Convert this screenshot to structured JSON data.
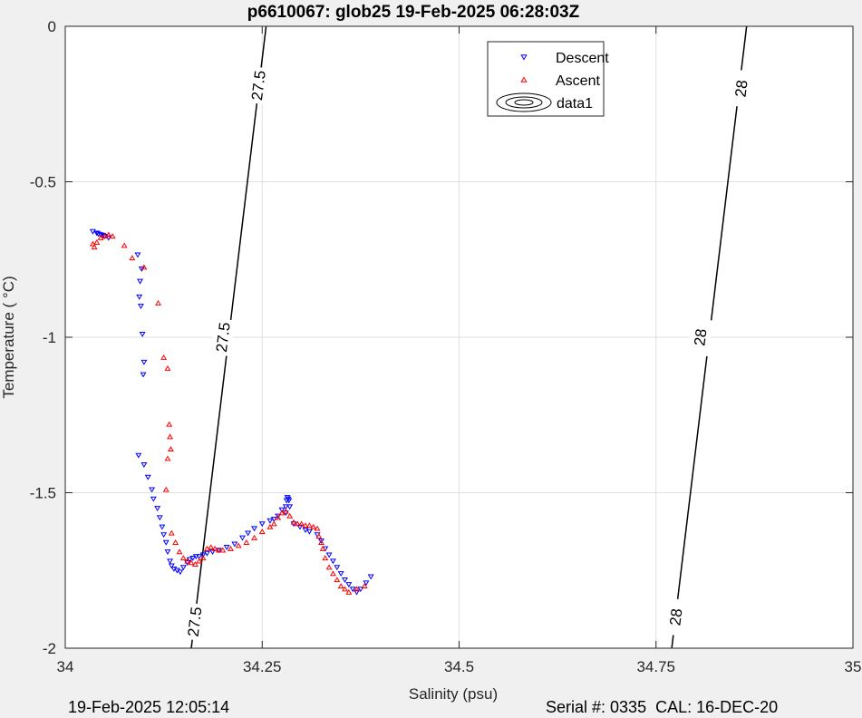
{
  "footer": {
    "left": "19-Feb-2025 12:05:14",
    "right": "Serial #: 0335  CAL: 16-DEC-20"
  },
  "colors": {
    "descent": "#0000ff",
    "ascent": "#ff0000",
    "contour": "#000000",
    "grid": "#dfdfdf",
    "figure_bg": "#f0f0f0",
    "axes_bg": "#ffffff"
  },
  "chart_data": {
    "type": "scatter",
    "title": "p6610067: glob25 19-Feb-2025 06:28:03Z",
    "xlabel": "Salinity (psu)",
    "ylabel": "Temperature (   °C)",
    "xlim": [
      34,
      35
    ],
    "ylim": [
      -2,
      0
    ],
    "xticks": [
      34,
      34.25,
      34.5,
      34.75,
      35
    ],
    "xtick_labels": [
      "34",
      "34.25",
      "34.5",
      "34.75",
      "35"
    ],
    "yticks": [
      0,
      -0.5,
      -1,
      -1.5,
      -2
    ],
    "ytick_labels": [
      "0",
      "-0.5",
      "-1",
      "-1.5",
      "-2"
    ],
    "grid": true,
    "legend": {
      "position": "top-right",
      "entries": [
        {
          "label": "Descent",
          "marker": "triangle-down"
        },
        {
          "label": "Ascent",
          "marker": "triangle-up"
        },
        {
          "label": "data1",
          "marker": "contour"
        }
      ]
    },
    "contours": [
      {
        "level": "27.5",
        "points": [
          [
            34.16,
            -2.0
          ],
          [
            34.255,
            0.0
          ]
        ],
        "labels": [
          {
            "text": "27.5",
            "x": 34.164,
            "y": -1.915
          },
          {
            "text": "27.5",
            "x": 34.2,
            "y": -1.0
          },
          {
            "text": "27.5",
            "x": 34.245,
            "y": -0.19
          }
        ]
      },
      {
        "level": "28",
        "points": [
          [
            34.77,
            -2.0
          ],
          [
            34.865,
            0.0
          ]
        ],
        "labels": [
          {
            "text": "28",
            "x": 34.775,
            "y": -1.9
          },
          {
            "text": "28",
            "x": 34.806,
            "y": -1.0
          },
          {
            "text": "28",
            "x": 34.858,
            "y": -0.2
          }
        ]
      }
    ],
    "series": [
      {
        "name": "Descent",
        "marker": "triangle-down",
        "x": [
          34.035,
          34.04,
          34.045,
          34.05,
          34.055,
          34.042,
          34.048,
          34.092,
          34.097,
          34.095,
          34.094,
          34.096,
          34.098,
          34.1,
          34.099,
          34.093,
          34.1,
          34.105,
          34.11,
          34.112,
          34.117,
          34.12,
          34.123,
          34.125,
          34.128,
          34.13,
          34.133,
          34.135,
          34.138,
          34.142,
          34.146,
          34.15,
          34.155,
          34.158,
          34.162,
          34.166,
          34.17,
          34.175,
          34.18,
          34.187,
          34.195,
          34.205,
          34.215,
          34.225,
          34.232,
          34.24,
          34.25,
          34.26,
          34.265,
          34.27,
          34.275,
          34.28,
          34.281,
          34.282,
          34.283,
          34.284,
          34.285,
          34.28,
          34.29,
          34.298,
          34.305,
          34.31,
          34.32,
          34.325,
          34.33,
          34.335,
          34.34,
          34.345,
          34.35,
          34.355,
          34.36,
          34.365,
          34.37,
          34.375,
          34.382,
          34.388
        ],
        "y": [
          -0.66,
          -0.665,
          -0.67,
          -0.675,
          -0.68,
          -0.668,
          -0.672,
          -0.735,
          -0.78,
          -0.82,
          -0.87,
          -0.9,
          -0.99,
          -1.08,
          -1.12,
          -1.38,
          -1.41,
          -1.45,
          -1.49,
          -1.52,
          -1.55,
          -1.58,
          -1.61,
          -1.635,
          -1.66,
          -1.69,
          -1.72,
          -1.735,
          -1.745,
          -1.75,
          -1.755,
          -1.74,
          -1.725,
          -1.715,
          -1.71,
          -1.705,
          -1.705,
          -1.7,
          -1.695,
          -1.69,
          -1.685,
          -1.675,
          -1.665,
          -1.645,
          -1.63,
          -1.615,
          -1.6,
          -1.59,
          -1.585,
          -1.575,
          -1.555,
          -1.545,
          -1.525,
          -1.515,
          -1.52,
          -1.525,
          -1.545,
          -1.565,
          -1.6,
          -1.61,
          -1.62,
          -1.625,
          -1.635,
          -1.655,
          -1.68,
          -1.7,
          -1.72,
          -1.74,
          -1.76,
          -1.78,
          -1.795,
          -1.81,
          -1.82,
          -1.81,
          -1.79,
          -1.77
        ]
      },
      {
        "name": "Ascent",
        "marker": "triangle-up",
        "x": [
          34.035,
          34.037,
          34.04,
          34.045,
          34.05,
          34.055,
          34.06,
          34.075,
          34.085,
          34.1,
          34.118,
          34.125,
          34.13,
          34.132,
          34.133,
          34.134,
          34.13,
          34.128,
          34.135,
          34.14,
          34.145,
          34.15,
          34.155,
          34.16,
          34.165,
          34.17,
          34.175,
          34.18,
          34.185,
          34.19,
          34.195,
          34.2,
          34.21,
          34.22,
          34.23,
          34.24,
          34.25,
          34.26,
          34.265,
          34.27,
          34.275,
          34.28,
          34.285,
          34.29,
          34.295,
          34.3,
          34.305,
          34.31,
          34.315,
          34.32,
          34.322,
          34.325,
          34.327,
          34.33,
          34.335,
          34.34,
          34.345,
          34.35,
          34.355,
          34.36,
          34.37,
          34.38
        ],
        "y": [
          -0.7,
          -0.71,
          -0.695,
          -0.68,
          -0.675,
          -0.67,
          -0.675,
          -0.705,
          -0.745,
          -0.775,
          -0.89,
          -1.065,
          -1.1,
          -1.28,
          -1.32,
          -1.36,
          -1.39,
          -1.49,
          -1.63,
          -1.66,
          -1.69,
          -1.71,
          -1.72,
          -1.725,
          -1.73,
          -1.72,
          -1.71,
          -1.68,
          -1.675,
          -1.68,
          -1.685,
          -1.685,
          -1.68,
          -1.67,
          -1.66,
          -1.645,
          -1.625,
          -1.61,
          -1.6,
          -1.58,
          -1.565,
          -1.56,
          -1.575,
          -1.595,
          -1.6,
          -1.6,
          -1.605,
          -1.605,
          -1.61,
          -1.615,
          -1.64,
          -1.66,
          -1.68,
          -1.71,
          -1.74,
          -1.76,
          -1.78,
          -1.8,
          -1.81,
          -1.82,
          -1.81,
          -1.8
        ]
      }
    ]
  }
}
